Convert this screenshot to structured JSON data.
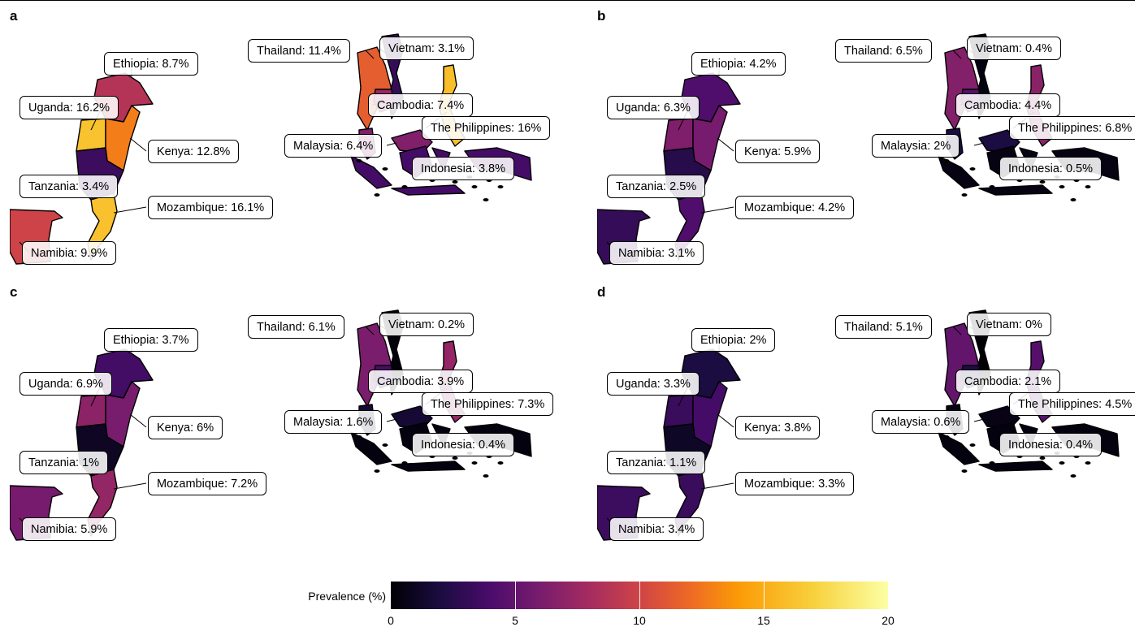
{
  "legend": {
    "title": "Prevalence (%)",
    "ticks": [
      "0",
      "5",
      "10",
      "15",
      "20"
    ],
    "range": [
      0,
      20
    ],
    "colormap": "inferno"
  },
  "panels": [
    {
      "letter": "a",
      "labels": {
        "ethiopia": "Ethiopia: 8.7%",
        "uganda": "Uganda: 16.2%",
        "kenya": "Kenya: 12.8%",
        "tanzania": "Tanzania: 3.4%",
        "mozambique": "Mozambique: 16.1%",
        "namibia": "Namibia: 9.9%",
        "thailand": "Thailand: 11.4%",
        "vietnam": "Vietnam: 3.1%",
        "cambodia": "Cambodia: 7.4%",
        "philippines": "The Philippines: 16%",
        "malaysia": "Malaysia: 6.4%",
        "indonesia": "Indonesia: 3.8%"
      },
      "values": {
        "ethiopia": 8.7,
        "uganda": 16.2,
        "kenya": 12.8,
        "tanzania": 3.4,
        "mozambique": 16.1,
        "namibia": 9.9,
        "thailand": 11.4,
        "vietnam": 3.1,
        "cambodia": 7.4,
        "philippines": 16,
        "malaysia": 6.4,
        "indonesia": 3.8
      }
    },
    {
      "letter": "b",
      "labels": {
        "ethiopia": "Ethiopia: 4.2%",
        "uganda": "Uganda: 6.3%",
        "kenya": "Kenya: 5.9%",
        "tanzania": "Tanzania: 2.5%",
        "mozambique": "Mozambique: 4.2%",
        "namibia": "Namibia: 3.1%",
        "thailand": "Thailand: 6.5%",
        "vietnam": "Vietnam: 0.4%",
        "cambodia": "Cambodia: 4.4%",
        "philippines": "The Philippines: 6.8%",
        "malaysia": "Malaysia: 2%",
        "indonesia": "Indonesia: 0.5%"
      },
      "values": {
        "ethiopia": 4.2,
        "uganda": 6.3,
        "kenya": 5.9,
        "tanzania": 2.5,
        "mozambique": 4.2,
        "namibia": 3.1,
        "thailand": 6.5,
        "vietnam": 0.4,
        "cambodia": 4.4,
        "philippines": 6.8,
        "malaysia": 2,
        "indonesia": 0.5
      }
    },
    {
      "letter": "c",
      "labels": {
        "ethiopia": "Ethiopia: 3.7%",
        "uganda": "Uganda: 6.9%",
        "kenya": "Kenya: 6%",
        "tanzania": "Tanzania: 1%",
        "mozambique": "Mozambique: 7.2%",
        "namibia": "Namibia: 5.9%",
        "thailand": "Thailand: 6.1%",
        "vietnam": "Vietnam: 0.2%",
        "cambodia": "Cambodia: 3.9%",
        "philippines": "The Philippines: 7.3%",
        "malaysia": "Malaysia: 1.6%",
        "indonesia": "Indonesia: 0.4%"
      },
      "values": {
        "ethiopia": 3.7,
        "uganda": 6.9,
        "kenya": 6,
        "tanzania": 1,
        "mozambique": 7.2,
        "namibia": 5.9,
        "thailand": 6.1,
        "vietnam": 0.2,
        "cambodia": 3.9,
        "philippines": 7.3,
        "malaysia": 1.6,
        "indonesia": 0.4
      }
    },
    {
      "letter": "d",
      "labels": {
        "ethiopia": "Ethiopia: 2%",
        "uganda": "Uganda: 3.3%",
        "kenya": "Kenya: 3.8%",
        "tanzania": "Tanzania: 1.1%",
        "mozambique": "Mozambique: 3.3%",
        "namibia": "Namibia: 3.4%",
        "thailand": "Thailand: 5.1%",
        "vietnam": "Vietnam: 0%",
        "cambodia": "Cambodia: 2.1%",
        "philippines": "The Philippines: 4.5%",
        "malaysia": "Malaysia: 0.6%",
        "indonesia": "Indonesia: 0.4%"
      },
      "values": {
        "ethiopia": 2,
        "uganda": 3.3,
        "kenya": 3.8,
        "tanzania": 1.1,
        "mozambique": 3.3,
        "namibia": 3.4,
        "thailand": 5.1,
        "vietnam": 0,
        "cambodia": 2.1,
        "philippines": 4.5,
        "malaysia": 0.6,
        "indonesia": 0.4
      }
    }
  ]
}
